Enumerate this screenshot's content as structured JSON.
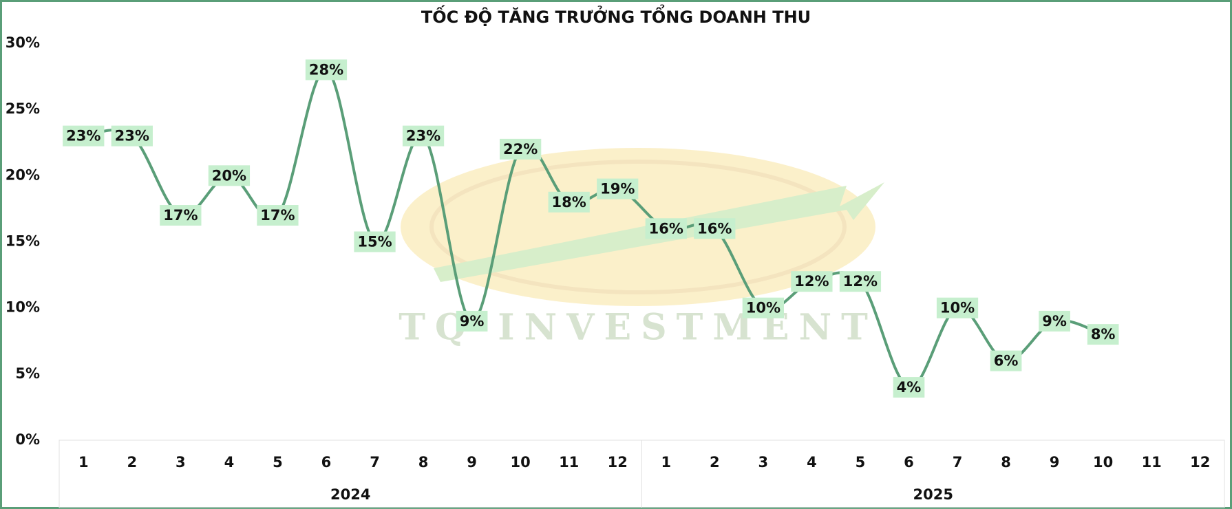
{
  "chart_data": {
    "type": "line",
    "title": "TỐC ĐỘ TĂNG TRƯỞNG TỔNG DOANH THU",
    "watermark": "TQ INVESTMENT",
    "categories": [
      "1",
      "2",
      "3",
      "4",
      "5",
      "6",
      "7",
      "8",
      "9",
      "10",
      "11",
      "12",
      "1",
      "2",
      "3",
      "4",
      "5",
      "6",
      "7",
      "8",
      "9",
      "10",
      "11",
      "12"
    ],
    "category_groups": [
      "2024",
      "2025"
    ],
    "series": [
      {
        "color": "#5a9e78",
        "values": [
          23,
          23,
          17,
          20,
          17,
          28,
          15,
          23,
          9,
          22,
          18,
          19,
          16,
          16,
          10,
          12,
          12,
          4,
          10,
          6,
          9,
          8,
          null,
          null
        ],
        "value_labels": [
          "23%",
          "23%",
          "17%",
          "20%",
          "17%",
          "28%",
          "15%",
          "23%",
          "9%",
          "22%",
          "18%",
          "19%",
          "16%",
          "16%",
          "10%",
          "12%",
          "12%",
          "4%",
          "10%",
          "6%",
          "9%",
          "8%",
          null,
          null
        ]
      }
    ],
    "ylim": [
      0,
      30
    ],
    "yticks": [
      {
        "value": 0,
        "label": "0%"
      },
      {
        "value": 5,
        "label": "5%"
      },
      {
        "value": 10,
        "label": "10%"
      },
      {
        "value": 15,
        "label": "15%"
      },
      {
        "value": 20,
        "label": "20%"
      },
      {
        "value": 25,
        "label": "25%"
      },
      {
        "value": 30,
        "label": "30%"
      }
    ],
    "label_color": "#c6efce",
    "grid": false
  }
}
